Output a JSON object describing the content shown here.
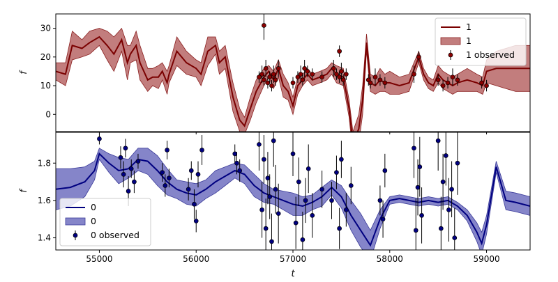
{
  "chart_data": [
    {
      "type": "line",
      "panel": "top",
      "xlabel": "",
      "ylabel": "f",
      "xlim": [
        54550,
        59450
      ],
      "ylim": [
        -6,
        35
      ],
      "yticks": [
        0,
        10,
        20,
        30
      ],
      "ytick_labels": [
        "0",
        "10",
        "20",
        "30"
      ],
      "legend": {
        "placement": "top-right",
        "entries": [
          "1",
          "1",
          "1 observed"
        ]
      },
      "colors": {
        "line": "#7a0000",
        "band": "#b35c5c",
        "band_edge": "#8b2020",
        "points": "#8b0000"
      },
      "series": [
        {
          "name": "1",
          "kind": "model",
          "x": [
            54550,
            54650,
            54720,
            54820,
            54900,
            55000,
            55080,
            55150,
            55230,
            55290,
            55320,
            55380,
            55420,
            55500,
            55550,
            55610,
            55650,
            55700,
            55720,
            55800,
            55900,
            56000,
            56050,
            56120,
            56200,
            56240,
            56300,
            56380,
            56450,
            56500,
            56560,
            56620,
            56700,
            56750,
            56800,
            56850,
            56900,
            56950,
            57000,
            57050,
            57100,
            57150,
            57200,
            57280,
            57350,
            57400,
            57450,
            57520,
            57580,
            57620,
            57680,
            57720,
            57760,
            57800,
            57850,
            57900,
            57950,
            58000,
            58100,
            58200,
            58300,
            58350,
            58400,
            58450,
            58500,
            58550,
            58600,
            58650,
            58700,
            58800,
            58900,
            58960,
            59000,
            59100,
            59200,
            59300,
            59450
          ],
          "y": [
            15,
            14,
            24,
            23,
            25,
            27,
            24,
            21,
            26,
            18,
            21,
            24,
            18,
            12,
            13,
            13,
            15,
            11,
            14,
            22,
            18,
            16,
            14,
            22,
            24,
            18,
            20,
            6,
            -2,
            -4,
            2,
            8,
            13,
            15,
            12,
            16,
            10,
            8,
            3,
            10,
            12,
            14,
            12,
            13,
            14,
            16,
            14,
            13,
            2,
            -10,
            -5,
            5,
            25,
            11,
            10,
            12,
            11,
            11,
            10,
            11,
            20,
            14,
            11,
            10,
            14,
            12,
            11,
            10,
            11,
            12,
            11,
            10,
            15,
            16,
            16,
            16,
            16
          ],
          "band_half_width": [
            3,
            4,
            5,
            3,
            4,
            3,
            5,
            6,
            4,
            6,
            3,
            5,
            6,
            4,
            3,
            4,
            3,
            4,
            3,
            5,
            4,
            3,
            4,
            5,
            3,
            4,
            4,
            5,
            4,
            3,
            4,
            4,
            3,
            2,
            3,
            3,
            4,
            3,
            3,
            3,
            2,
            2,
            2,
            2,
            2,
            2,
            3,
            3,
            3,
            4,
            5,
            5,
            3,
            3,
            3,
            4,
            3,
            4,
            3,
            3,
            2,
            2,
            2,
            2,
            3,
            3,
            3,
            3,
            3,
            4,
            3,
            3,
            4,
            6,
            7,
            8,
            8
          ]
        },
        {
          "name": "1 observed",
          "kind": "observed",
          "x": [
            56650,
            56680,
            56700,
            56720,
            56740,
            56760,
            56780,
            56800,
            56820,
            56850,
            57000,
            57050,
            57080,
            57100,
            57120,
            57150,
            57200,
            57300,
            57420,
            57450,
            57480,
            57500,
            57520,
            57550,
            57780,
            57800,
            57850,
            57900,
            57950,
            58250,
            58300,
            58500,
            58550,
            58600,
            58650,
            58700,
            58950,
            59000,
            56700,
            57480
          ],
          "y": [
            13,
            14,
            12,
            16,
            11,
            13,
            10,
            14,
            12,
            16,
            11,
            13,
            14,
            12,
            16,
            15,
            14,
            13,
            16,
            14,
            13,
            15,
            12,
            14,
            12,
            11,
            13,
            12,
            11,
            14,
            20,
            12,
            10,
            11,
            13,
            12,
            11,
            10,
            31,
            22
          ],
          "err": [
            2,
            3,
            2,
            3,
            2,
            2,
            2,
            3,
            2,
            3,
            2,
            2,
            3,
            2,
            3,
            2,
            2,
            2,
            3,
            2,
            2,
            3,
            2,
            2,
            2,
            2,
            3,
            2,
            2,
            3,
            2,
            2,
            2,
            2,
            3,
            2,
            2,
            2,
            5,
            2
          ]
        }
      ]
    },
    {
      "type": "line",
      "panel": "bottom",
      "xlabel": "t",
      "ylabel": "f",
      "xlim": [
        54550,
        59450
      ],
      "ylim": [
        1.335,
        1.965
      ],
      "xticks": [
        55000,
        56000,
        57000,
        58000,
        59000
      ],
      "xtick_labels": [
        "55000",
        "56000",
        "57000",
        "58000",
        "59000"
      ],
      "yticks": [
        1.4,
        1.6,
        1.8
      ],
      "ytick_labels": [
        "1.4",
        "1.6",
        "1.8"
      ],
      "legend": {
        "placement": "bottom-left",
        "entries": [
          "0",
          "0",
          "0 observed"
        ]
      },
      "colors": {
        "line": "#000080",
        "band": "#6666bb",
        "band_edge": "#3a3a99",
        "points": "#000080"
      },
      "series": [
        {
          "name": "0",
          "kind": "model",
          "x": [
            54550,
            54700,
            54850,
            54950,
            55000,
            55100,
            55200,
            55300,
            55400,
            55500,
            55600,
            55700,
            55800,
            55900,
            56000,
            56100,
            56200,
            56300,
            56400,
            56500,
            56600,
            56700,
            56800,
            56900,
            57000,
            57100,
            57200,
            57300,
            57400,
            57500,
            57600,
            57700,
            57800,
            57900,
            58000,
            58100,
            58200,
            58300,
            58400,
            58500,
            58600,
            58700,
            58800,
            58900,
            58950,
            59000,
            59100,
            59200,
            59300,
            59450
          ],
          "y": [
            1.66,
            1.67,
            1.7,
            1.76,
            1.85,
            1.8,
            1.76,
            1.77,
            1.82,
            1.81,
            1.76,
            1.7,
            1.66,
            1.64,
            1.63,
            1.66,
            1.7,
            1.73,
            1.76,
            1.74,
            1.68,
            1.64,
            1.62,
            1.6,
            1.58,
            1.57,
            1.59,
            1.62,
            1.67,
            1.62,
            1.52,
            1.44,
            1.36,
            1.5,
            1.6,
            1.61,
            1.6,
            1.59,
            1.6,
            1.59,
            1.6,
            1.57,
            1.52,
            1.43,
            1.37,
            1.47,
            1.78,
            1.6,
            1.59,
            1.57
          ],
          "band_half_width": [
            0.11,
            0.1,
            0.08,
            0.05,
            0.03,
            0.05,
            0.07,
            0.05,
            0.06,
            0.07,
            0.08,
            0.07,
            0.05,
            0.06,
            0.06,
            0.05,
            0.06,
            0.05,
            0.04,
            0.05,
            0.06,
            0.05,
            0.04,
            0.05,
            0.06,
            0.05,
            0.04,
            0.05,
            0.04,
            0.06,
            0.08,
            0.09,
            0.08,
            0.05,
            0.02,
            0.02,
            0.02,
            0.02,
            0.02,
            0.02,
            0.02,
            0.02,
            0.03,
            0.05,
            0.06,
            0.05,
            0.03,
            0.05,
            0.05,
            0.05
          ]
        },
        {
          "name": "0 observed",
          "kind": "observed",
          "x": [
            55000,
            55220,
            55250,
            55270,
            55300,
            55330,
            55360,
            55400,
            55650,
            55680,
            55700,
            55720,
            55920,
            55950,
            55980,
            56000,
            56020,
            56060,
            56400,
            56420,
            56450,
            56650,
            56680,
            56700,
            56720,
            56740,
            56760,
            56780,
            56800,
            56820,
            56850,
            57000,
            57030,
            57060,
            57100,
            57130,
            57160,
            57200,
            57300,
            57400,
            57450,
            57480,
            57500,
            57550,
            57600,
            57900,
            57930,
            57950,
            58250,
            58270,
            58290,
            58310,
            58330,
            58500,
            58530,
            58550,
            58580,
            58610,
            58640,
            58670,
            58700
          ],
          "y": [
            1.93,
            1.83,
            1.74,
            1.88,
            1.65,
            1.77,
            1.7,
            1.81,
            1.75,
            1.68,
            1.87,
            1.72,
            1.66,
            1.76,
            1.58,
            1.49,
            1.74,
            1.87,
            1.85,
            1.8,
            1.76,
            1.9,
            1.55,
            1.82,
            1.45,
            1.72,
            1.62,
            1.38,
            1.92,
            1.66,
            1.53,
            1.85,
            1.48,
            1.7,
            1.39,
            1.6,
            1.77,
            1.52,
            1.66,
            1.6,
            1.75,
            1.45,
            1.82,
            1.55,
            1.68,
            1.6,
            1.5,
            1.76,
            1.88,
            1.44,
            1.67,
            1.78,
            1.52,
            1.92,
            1.45,
            1.7,
            1.84,
            1.55,
            1.66,
            1.4,
            1.8
          ],
          "err": [
            0.03,
            0.06,
            0.07,
            0.05,
            0.08,
            0.05,
            0.06,
            0.04,
            0.05,
            0.06,
            0.05,
            0.05,
            0.06,
            0.05,
            0.08,
            0.06,
            0.07,
            0.08,
            0.05,
            0.06,
            0.06,
            0.14,
            0.15,
            0.13,
            0.16,
            0.14,
            0.12,
            0.15,
            0.14,
            0.13,
            0.16,
            0.12,
            0.14,
            0.13,
            0.15,
            0.12,
            0.13,
            0.12,
            0.1,
            0.1,
            0.09,
            0.11,
            0.1,
            0.09,
            0.1,
            0.08,
            0.1,
            0.09,
            0.16,
            0.17,
            0.15,
            0.16,
            0.15,
            0.16,
            0.17,
            0.15,
            0.16,
            0.17,
            0.15,
            0.16,
            0.17
          ]
        }
      ]
    }
  ]
}
